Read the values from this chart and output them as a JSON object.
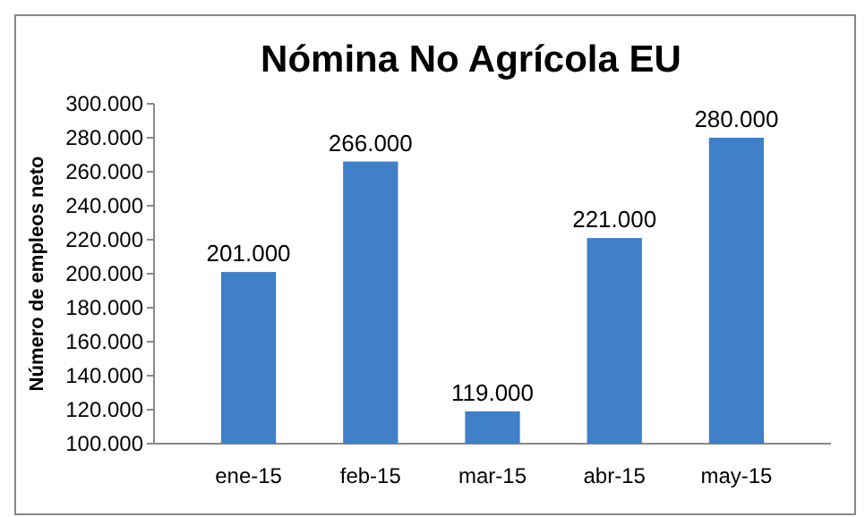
{
  "chart_data": {
    "type": "bar",
    "title": "Nómina No Agrícola EU",
    "ylabel": "Número de empleos neto",
    "categories": [
      "ene-15",
      "feb-15",
      "mar-15",
      "abr-15",
      "may-15"
    ],
    "values": [
      201000,
      266000,
      119000,
      221000,
      280000
    ],
    "value_labels": [
      "201.000",
      "266.000",
      "119.000",
      "221.000",
      "280.000"
    ],
    "color": "#3f80c9",
    "ylim": [
      100000,
      300000
    ],
    "yticks": [
      {
        "value": 100000,
        "label": "100.000"
      },
      {
        "value": 120000,
        "label": "120.000"
      },
      {
        "value": 140000,
        "label": "140.000"
      },
      {
        "value": 160000,
        "label": "160.000"
      },
      {
        "value": 180000,
        "label": "180.000"
      },
      {
        "value": 200000,
        "label": "200.000"
      },
      {
        "value": 220000,
        "label": "220.000"
      },
      {
        "value": 240000,
        "label": "240.000"
      },
      {
        "value": 260000,
        "label": "260.000"
      },
      {
        "value": 280000,
        "label": "280.000"
      },
      {
        "value": 300000,
        "label": "300.000"
      }
    ]
  }
}
